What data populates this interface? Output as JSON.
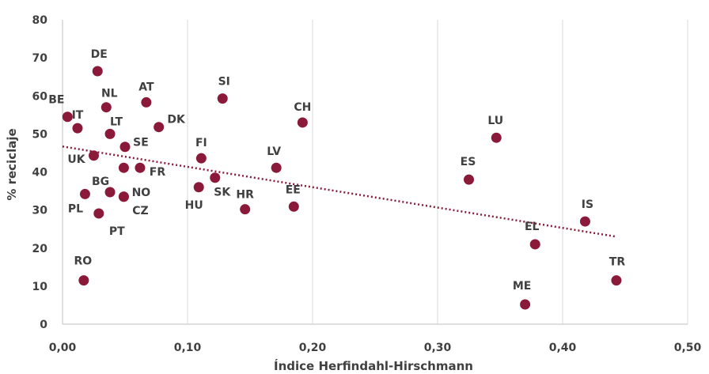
{
  "chart_data": {
    "type": "scatter",
    "xlabel": "Índice Herfindahl-Hirschmann",
    "ylabel": "% reciclaje",
    "xlim": [
      0,
      0.5
    ],
    "ylim": [
      0,
      80
    ],
    "x_ticks": [
      0,
      0.1,
      0.2,
      0.3,
      0.4,
      0.5
    ],
    "x_tick_labels": [
      "0,00",
      "0,10",
      "0,20",
      "0,30",
      "0,40",
      "0,50"
    ],
    "y_ticks": [
      0,
      10,
      20,
      30,
      40,
      50,
      60,
      70,
      80
    ],
    "y_tick_labels": [
      "0",
      "10",
      "20",
      "30",
      "40",
      "50",
      "60",
      "70",
      "80"
    ],
    "grid": "vertical",
    "marker_color": "#8b1a3a",
    "trend_color": "#8b1a3a",
    "trendline": {
      "type": "linear",
      "from": [
        0.0,
        46.7
      ],
      "to": [
        0.443,
        23.0
      ]
    },
    "points": [
      {
        "label": "DE",
        "x": 0.028,
        "y": 66.5
      },
      {
        "label": "BE",
        "x": 0.004,
        "y": 54.5
      },
      {
        "label": "IT",
        "x": 0.012,
        "y": 51.5
      },
      {
        "label": "NL",
        "x": 0.035,
        "y": 57.0
      },
      {
        "label": "LT",
        "x": 0.038,
        "y": 50.0
      },
      {
        "label": "AT",
        "x": 0.067,
        "y": 58.3
      },
      {
        "label": "SI",
        "x": 0.128,
        "y": 59.3
      },
      {
        "label": "DK",
        "x": 0.077,
        "y": 51.8
      },
      {
        "label": "CH",
        "x": 0.192,
        "y": 53.0
      },
      {
        "label": "SE",
        "x": 0.05,
        "y": 46.6
      },
      {
        "label": "UK",
        "x": 0.025,
        "y": 44.3
      },
      {
        "label": "FI",
        "x": 0.111,
        "y": 43.6
      },
      {
        "label": "FR",
        "x": 0.062,
        "y": 41.1
      },
      {
        "label": "FR",
        "x": 0.049,
        "y": 41.1
      },
      {
        "label": "LV",
        "x": 0.171,
        "y": 41.1
      },
      {
        "label": "SK",
        "x": 0.122,
        "y": 38.5
      },
      {
        "label": "HU",
        "x": 0.109,
        "y": 36.0
      },
      {
        "label": "BG",
        "x": 0.038,
        "y": 34.7
      },
      {
        "label": "NO",
        "x": 0.049,
        "y": 33.5
      },
      {
        "label": "PL",
        "x": 0.018,
        "y": 34.2
      },
      {
        "label": "CZ",
        "x": 0.049,
        "y": 33.5
      },
      {
        "label": "PT",
        "x": 0.029,
        "y": 29.1
      },
      {
        "label": "HR",
        "x": 0.146,
        "y": 30.2
      },
      {
        "label": "EE",
        "x": 0.185,
        "y": 30.9
      },
      {
        "label": "ES",
        "x": 0.325,
        "y": 38.0
      },
      {
        "label": "LU",
        "x": 0.347,
        "y": 49.0
      },
      {
        "label": "IS",
        "x": 0.418,
        "y": 27.0
      },
      {
        "label": "EL",
        "x": 0.378,
        "y": 21.0
      },
      {
        "label": "RO",
        "x": 0.017,
        "y": 11.5
      },
      {
        "label": "ME",
        "x": 0.37,
        "y": 5.2
      },
      {
        "label": "TR",
        "x": 0.443,
        "y": 11.5
      }
    ]
  }
}
